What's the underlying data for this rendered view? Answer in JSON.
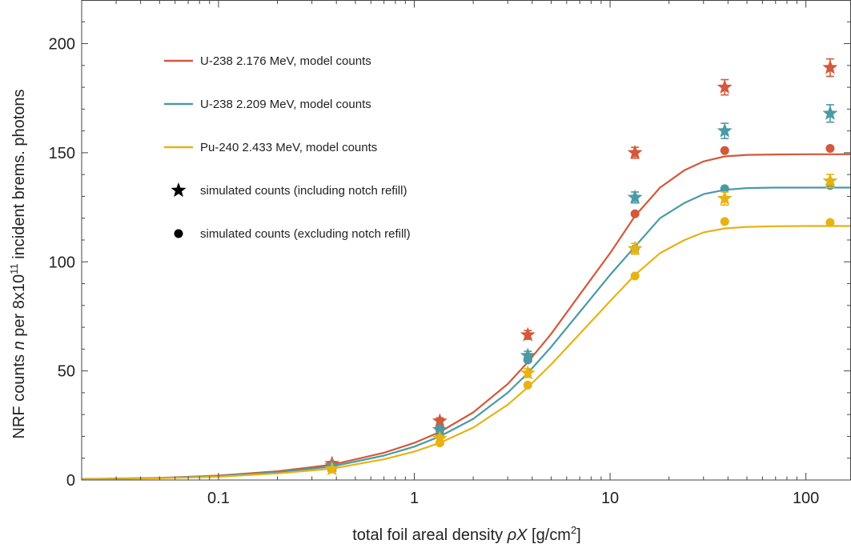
{
  "chart_data": {
    "type": "scatter",
    "title": "",
    "xlabel": {
      "prefix": "total foil areal density ",
      "symbol": "ρX",
      "units_base": " [g/cm",
      "units_sup": "2",
      "units_end": "]"
    },
    "ylabel": {
      "part1": "NRF counts ",
      "symbol": "n",
      "part2": " per 8x10",
      "sup": "11",
      "part3": " incident brems. photons"
    },
    "x_scale": "log",
    "xlim": [
      0.02,
      170
    ],
    "ylim": [
      0,
      220
    ],
    "x_ticks": [
      {
        "value": 0.1,
        "label": "0.1"
      },
      {
        "value": 1,
        "label": "1"
      },
      {
        "value": 10,
        "label": "10"
      },
      {
        "value": 100,
        "label": "100"
      }
    ],
    "y_ticks": [
      {
        "value": 0,
        "label": "0"
      },
      {
        "value": 50,
        "label": "50"
      },
      {
        "value": 100,
        "label": "100"
      },
      {
        "value": 150,
        "label": "150"
      },
      {
        "value": 200,
        "label": "200"
      }
    ],
    "grid": false,
    "legend_position": "top-left",
    "legend": [
      {
        "kind": "line",
        "label": "U-238 2.176 MeV, model counts",
        "color": "#d4583a"
      },
      {
        "kind": "line",
        "label": "U-238 2.209 MeV, model counts",
        "color": "#4a9aa5"
      },
      {
        "kind": "line",
        "label": "Pu-240 2.433 MeV, model counts",
        "color": "#e8b213"
      },
      {
        "kind": "star",
        "label": "simulated counts (including notch refill)",
        "color": "#000000"
      },
      {
        "kind": "dot",
        "label": "simulated counts (excluding notch refill)",
        "color": "#000000"
      }
    ],
    "model_curves": [
      {
        "name": "U-238 2.176 MeV, model counts",
        "color": "#d4583a",
        "x": [
          0.02,
          0.05,
          0.1,
          0.2,
          0.38,
          0.7,
          1.0,
          1.35,
          2.0,
          3.0,
          3.8,
          5.0,
          7.0,
          10.0,
          13.4,
          18.0,
          24.0,
          30.0,
          38.5,
          50.0,
          70.0,
          100.0,
          133.0,
          170.0
        ],
        "values": [
          0.4,
          1.0,
          2.0,
          4.0,
          7.0,
          12.5,
          17.0,
          22.0,
          31.0,
          44.0,
          54.0,
          67.0,
          85.0,
          104.0,
          121.0,
          134.0,
          142.0,
          146.0,
          148.3,
          149.0,
          149.2,
          149.3,
          149.3,
          149.3
        ]
      },
      {
        "name": "U-238 2.209 MeV, model counts",
        "color": "#4a9aa5",
        "x": [
          0.02,
          0.05,
          0.1,
          0.2,
          0.38,
          0.7,
          1.0,
          1.35,
          2.0,
          3.0,
          3.8,
          5.0,
          7.0,
          10.0,
          13.4,
          18.0,
          24.0,
          30.0,
          38.5,
          50.0,
          70.0,
          100.0,
          133.0,
          170.0
        ],
        "values": [
          0.35,
          0.9,
          1.8,
          3.6,
          6.2,
          11.2,
          15.3,
          20.0,
          28.0,
          40.0,
          49.0,
          61.0,
          77.0,
          94.0,
          107.0,
          120.0,
          127.0,
          131.0,
          133.0,
          133.8,
          134.0,
          134.0,
          134.0,
          134.0
        ]
      },
      {
        "name": "Pu-240 2.433 MeV, model counts",
        "color": "#e8b213",
        "x": [
          0.02,
          0.05,
          0.1,
          0.2,
          0.38,
          0.7,
          1.0,
          1.35,
          2.0,
          3.0,
          3.8,
          5.0,
          7.0,
          10.0,
          13.4,
          18.0,
          24.0,
          30.0,
          38.5,
          50.0,
          70.0,
          100.0,
          133.0,
          170.0
        ],
        "values": [
          0.3,
          0.8,
          1.5,
          3.0,
          5.2,
          9.5,
          13.0,
          17.0,
          24.0,
          34.5,
          42.5,
          53.0,
          67.0,
          82.0,
          94.0,
          104.0,
          110.0,
          113.5,
          115.3,
          116.0,
          116.3,
          116.4,
          116.4,
          116.4
        ]
      }
    ],
    "simulated_including_notch_refill": [
      {
        "color": "#d4583a",
        "x": [
          0.38,
          1.35,
          3.8,
          13.4,
          38.5,
          133.0
        ],
        "values": [
          7.5,
          27.0,
          66.5,
          150.0,
          180.0,
          189.0
        ],
        "err": [
          1.0,
          1.5,
          2.0,
          2.5,
          3.5,
          4.0
        ]
      },
      {
        "color": "#4a9aa5",
        "x": [
          0.38,
          1.35,
          3.8,
          13.4,
          38.5,
          133.0
        ],
        "values": [
          6.5,
          23.0,
          57.0,
          129.5,
          160.0,
          168.0
        ],
        "err": [
          1.0,
          1.5,
          2.0,
          2.5,
          3.5,
          4.0
        ]
      },
      {
        "color": "#e8b213",
        "x": [
          0.38,
          1.35,
          3.8,
          13.4,
          38.5,
          133.0
        ],
        "values": [
          5.0,
          19.0,
          49.0,
          106.0,
          129.0,
          137.0
        ],
        "err": [
          1.0,
          1.5,
          2.0,
          2.5,
          3.0,
          3.0
        ]
      }
    ],
    "simulated_excluding_notch_refill": [
      {
        "color": "#d4583a",
        "x": [
          0.38,
          1.35,
          3.8,
          13.4,
          38.5,
          133.0
        ],
        "values": [
          7.0,
          23.0,
          55.5,
          122.0,
          151.0,
          152.0
        ]
      },
      {
        "color": "#4a9aa5",
        "x": [
          0.38,
          1.35,
          3.8,
          13.4,
          38.5,
          133.0
        ],
        "values": [
          6.0,
          21.0,
          55.0,
          106.0,
          133.5,
          135.0
        ]
      },
      {
        "color": "#e8b213",
        "x": [
          0.38,
          1.35,
          3.8,
          13.4,
          38.5,
          133.0
        ],
        "values": [
          5.0,
          17.0,
          43.5,
          93.5,
          118.5,
          118.0
        ]
      }
    ]
  }
}
